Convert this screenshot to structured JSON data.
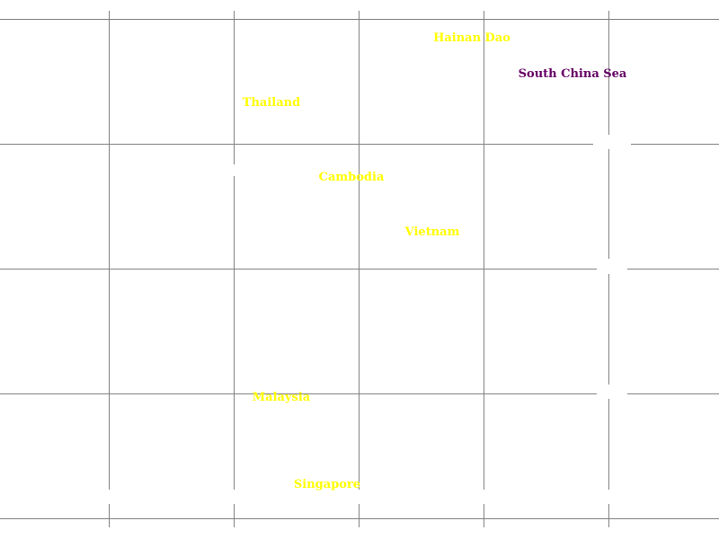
{
  "map": {
    "colors": {
      "background": "#ffffff",
      "grid": "#808080",
      "land_label": "#ffff00",
      "sea_label": "#660066"
    },
    "labels": {
      "hainan": "Hainan Dao",
      "south_china_sea": "South China Sea",
      "thailand": "Thailand",
      "cambodia": "Cambodia",
      "vietnam": "Vietnam",
      "malaysia": "Malaysia",
      "singapore": "Singapore"
    }
  }
}
